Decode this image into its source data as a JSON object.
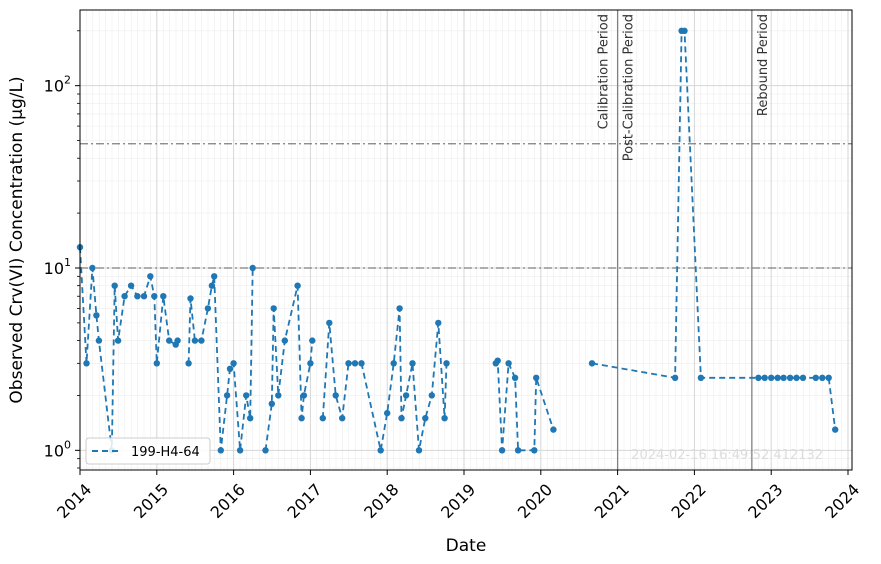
{
  "chart_data": {
    "type": "line",
    "xlabel": "Date",
    "ylabel": "Observed Crv(VI) Concentration (µg/L)",
    "yscale": "log",
    "xlim": [
      "2014-01-01",
      "2024-01-20"
    ],
    "ylim": [
      0.78,
      260
    ],
    "x_tick_labels": [
      "2014",
      "2015",
      "2016",
      "2017",
      "2018",
      "2019",
      "2020",
      "2021",
      "2022",
      "2023",
      "2024"
    ],
    "y_tick_labels": [
      {
        "value": 1,
        "base": "10",
        "exp": "0"
      },
      {
        "value": 10,
        "base": "10",
        "exp": "1"
      },
      {
        "value": 100,
        "base": "10",
        "exp": "2"
      }
    ],
    "grid": true,
    "legend_position": "lower-left",
    "reference_lines": [
      10,
      48
    ],
    "periods": [
      {
        "date": "2021-01-01",
        "labels": [
          "Calibration Period",
          "Post-Calibration Period"
        ]
      },
      {
        "date": "2022-10-01",
        "labels": [
          "Rebound Period"
        ]
      }
    ],
    "watermark": "2024-02-16 16:49:52.412132",
    "series": [
      {
        "name": "199-H4-64",
        "color": "#1f77b4",
        "points": [
          [
            "2014-01-01",
            13
          ],
          [
            "2014-02-01",
            3
          ],
          [
            "2014-03-01",
            10
          ],
          [
            "2014-03-20",
            5.5
          ],
          [
            "2014-04-01",
            4
          ],
          [
            "2014-06-01",
            1.0
          ],
          [
            "2014-06-15",
            8
          ],
          [
            "2014-07-01",
            4
          ],
          [
            "2014-08-01",
            7
          ],
          [
            "2014-09-01",
            8
          ],
          [
            "2014-10-01",
            7
          ],
          [
            "2014-11-01",
            7
          ],
          [
            "2014-12-01",
            9
          ],
          [
            "2014-12-20",
            7
          ],
          [
            "2015-01-01",
            3
          ],
          [
            "2015-02-01",
            7
          ],
          [
            "2015-03-01",
            4
          ],
          [
            "2015-04-01",
            3.8
          ],
          [
            "2015-04-10",
            4
          ],
          [
            "2015-05-01",
            null
          ],
          [
            "2015-06-01",
            3
          ],
          [
            "2015-06-10",
            6.8
          ],
          [
            "2015-07-01",
            4
          ],
          [
            "2015-08-01",
            4
          ],
          [
            "2015-09-01",
            6
          ],
          [
            "2015-09-20",
            8
          ],
          [
            "2015-10-01",
            9
          ],
          [
            "2015-11-01",
            1.0
          ],
          [
            "2015-12-01",
            2
          ],
          [
            "2015-12-15",
            2.8
          ],
          [
            "2016-01-01",
            3
          ],
          [
            "2016-02-01",
            1.0
          ],
          [
            "2016-03-01",
            2
          ],
          [
            "2016-03-20",
            1.5
          ],
          [
            "2016-04-01",
            10
          ],
          [
            "2016-05-01",
            null
          ],
          [
            "2016-06-01",
            1.0
          ],
          [
            "2016-07-01",
            1.8
          ],
          [
            "2016-07-10",
            6
          ],
          [
            "2016-08-01",
            2
          ],
          [
            "2016-09-01",
            4
          ],
          [
            "2016-11-01",
            8
          ],
          [
            "2016-11-20",
            1.5
          ],
          [
            "2016-12-01",
            2
          ],
          [
            "2017-01-01",
            3
          ],
          [
            "2017-01-10",
            4
          ],
          [
            "2017-02-01",
            null
          ],
          [
            "2017-03-01",
            1.5
          ],
          [
            "2017-04-01",
            5
          ],
          [
            "2017-05-01",
            2
          ],
          [
            "2017-06-01",
            1.5
          ],
          [
            "2017-07-01",
            3
          ],
          [
            "2017-08-01",
            3
          ],
          [
            "2017-09-01",
            3
          ],
          [
            "2017-12-01",
            1.0
          ],
          [
            "2018-01-01",
            1.6
          ],
          [
            "2018-02-01",
            3
          ],
          [
            "2018-03-01",
            6
          ],
          [
            "2018-03-10",
            1.5
          ],
          [
            "2018-04-01",
            2
          ],
          [
            "2018-05-01",
            3
          ],
          [
            "2018-06-01",
            1.0
          ],
          [
            "2018-07-01",
            1.5
          ],
          [
            "2018-08-01",
            2
          ],
          [
            "2018-09-01",
            5
          ],
          [
            "2018-10-01",
            1.5
          ],
          [
            "2018-10-10",
            3
          ],
          [
            "2018-11-01",
            null
          ],
          [
            "2019-05-01",
            null
          ],
          [
            "2019-06-01",
            3
          ],
          [
            "2019-06-10",
            3.1
          ],
          [
            "2019-07-01",
            1.0
          ],
          [
            "2019-08-01",
            3
          ],
          [
            "2019-09-01",
            2.5
          ],
          [
            "2019-09-15",
            1.0
          ],
          [
            "2019-12-01",
            1.0
          ],
          [
            "2019-12-10",
            2.5
          ],
          [
            "2020-03-01",
            1.3
          ],
          [
            "2020-04-01",
            null
          ],
          [
            "2020-09-01",
            3
          ],
          [
            "2021-10-01",
            2.5
          ],
          [
            "2021-11-01",
            200
          ],
          [
            "2021-11-15",
            200
          ],
          [
            "2022-02-01",
            2.5
          ],
          [
            "2022-11-01",
            2.5
          ],
          [
            "2022-12-01",
            2.5
          ],
          [
            "2023-01-01",
            2.5
          ],
          [
            "2023-02-01",
            2.5
          ],
          [
            "2023-03-01",
            2.5
          ],
          [
            "2023-04-01",
            2.5
          ],
          [
            "2023-05-01",
            2.5
          ],
          [
            "2023-06-01",
            2.5
          ],
          [
            "2023-08-01",
            2.5
          ],
          [
            "2023-09-01",
            2.5
          ],
          [
            "2023-10-01",
            2.5
          ],
          [
            "2023-11-01",
            1.3
          ]
        ]
      }
    ]
  }
}
